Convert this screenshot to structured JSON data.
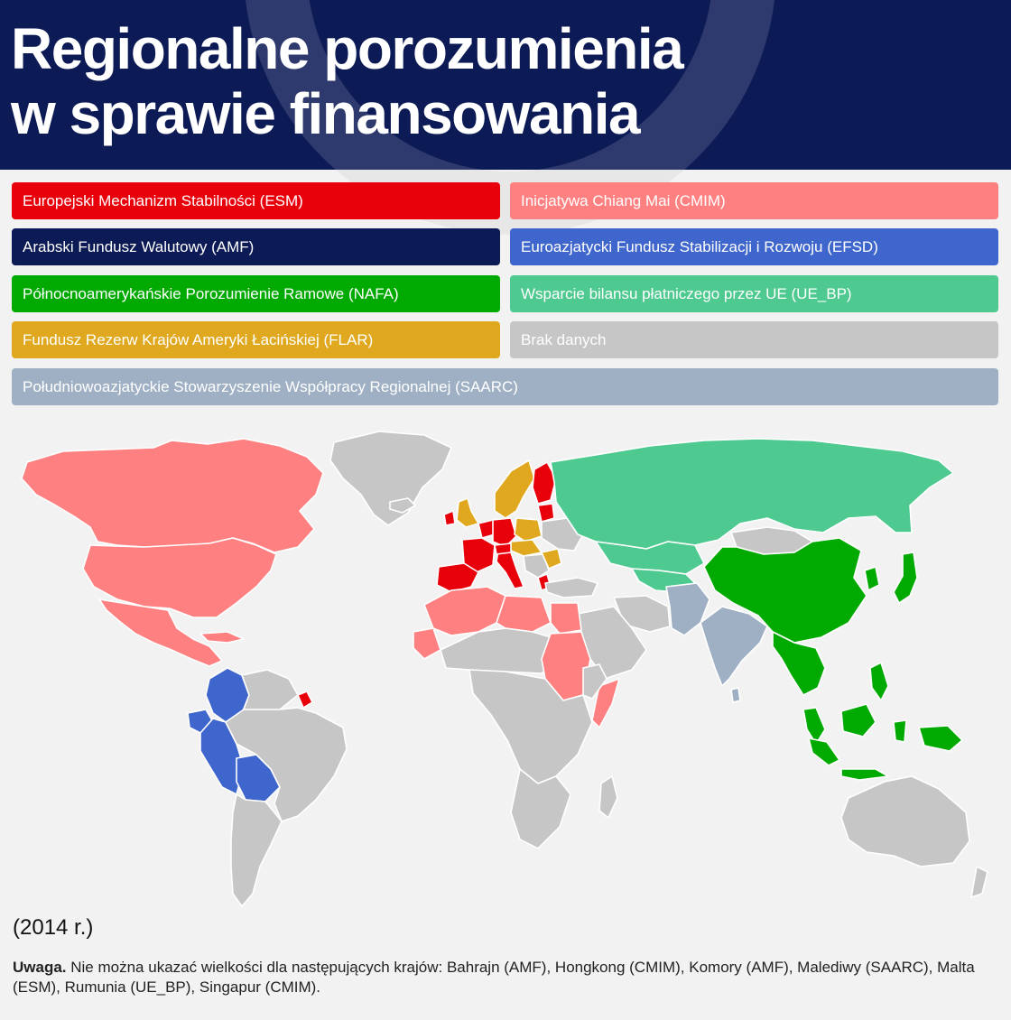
{
  "title_line1": "Regionalne porozumienia",
  "title_line2": "w sprawie finansowania",
  "legend": [
    {
      "id": "ESM",
      "label": "Europejski Mechanizm Stabilności (ESM)",
      "color": "#e8000b"
    },
    {
      "id": "CMIM",
      "label": "Inicjatywa Chiang Mai (CMIM)",
      "color": "#ff8080"
    },
    {
      "id": "AMF",
      "label": "Arabski Fundusz Walutowy (AMF)",
      "color": "#0c1a55"
    },
    {
      "id": "EFSD",
      "label": "Euroazjatycki Fundusz Stabilizacji i Rozwoju (EFSD)",
      "color": "#3f66cc"
    },
    {
      "id": "NAFA",
      "label": "Północnoamerykańskie Porozumienie Ramowe (NAFA)",
      "color": "#00aa00"
    },
    {
      "id": "UE_BP",
      "label": "Wsparcie bilansu płatniczego przez UE (UE_BP)",
      "color": "#4ec98f"
    },
    {
      "id": "FLAR",
      "label": "Fundusz Rezerw Krajów Ameryki Łacińskiej (FLAR)",
      "color": "#e0a81e"
    },
    {
      "id": "NODATA",
      "label": "Brak danych",
      "color": "#c6c6c6"
    },
    {
      "id": "SAARC",
      "label": "Południowoazjatyckie Stowarzyszenie Współpracy Regionalnej (SAARC)",
      "color": "#9fb0c4"
    }
  ],
  "year": "(2014 r.)",
  "note_bold": "Uwaga.",
  "note_text": " Nie można ukazać wielkości dla następujących krajów: Bahrajn (AMF), Hongkong (CMIM), Komory (AMF), Malediwy (SAARC), Malta (ESM), Rumunia (UE_BP), Singapur (CMIM)."
}
